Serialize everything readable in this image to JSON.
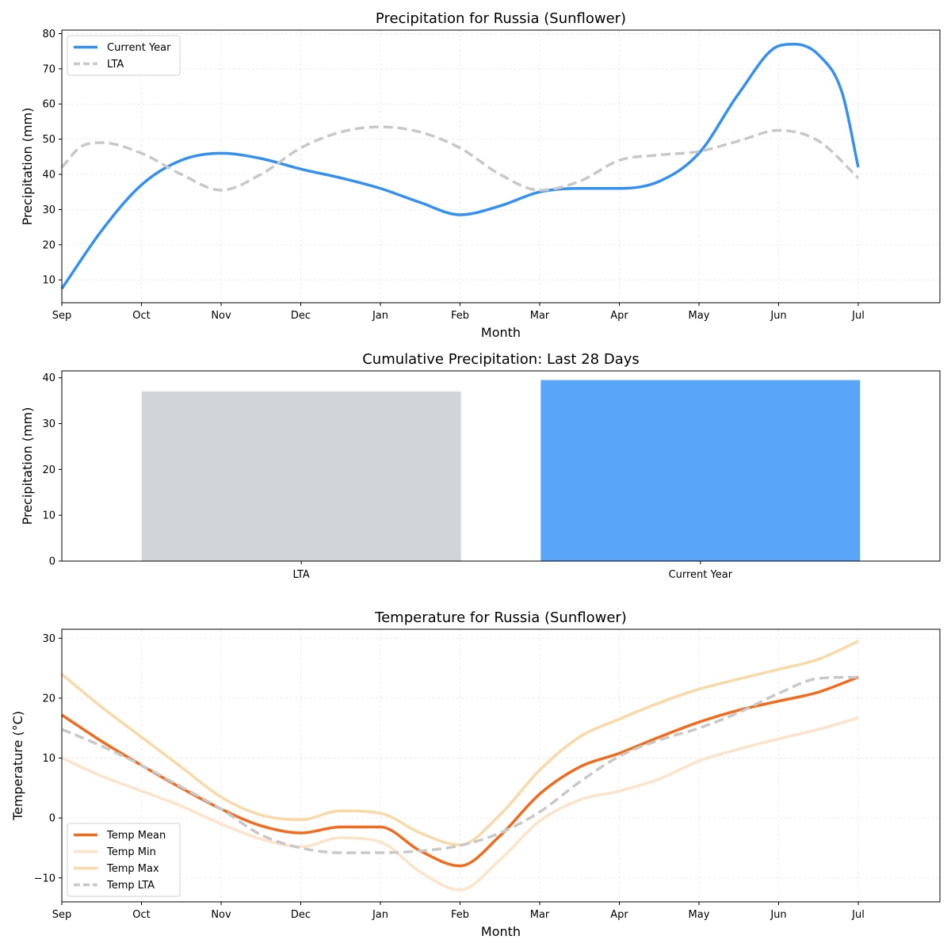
{
  "chart_data": [
    {
      "type": "line",
      "title": "Precipitation for Russia (Sunflower)",
      "xlabel": "Month",
      "ylabel": "Precipitation (mm)",
      "x_ticks": [
        "Sep",
        "Oct",
        "Nov",
        "Dec",
        "Jan",
        "Feb",
        "Mar",
        "Apr",
        "May",
        "Jun",
        "Jul"
      ],
      "x_range": [
        0,
        11.0
      ],
      "ylim": [
        3.5,
        81
      ],
      "y_ticks": [
        10,
        20,
        30,
        40,
        50,
        60,
        70,
        80
      ],
      "grid": true,
      "legend_position": "upper-left",
      "series": [
        {
          "name": "Current Year",
          "color": "#3390f0",
          "dashed": false,
          "x": [
            0,
            0.5,
            1,
            1.5,
            2,
            2.5,
            3,
            3.5,
            4,
            4.5,
            5,
            5.5,
            6,
            6.5,
            7,
            7.5,
            8,
            8.5,
            9,
            9.2,
            9.5,
            9.8,
            10
          ],
          "y": [
            7.5,
            24,
            37,
            44,
            46,
            44.5,
            41.5,
            39,
            36,
            32,
            28.5,
            31,
            35,
            36,
            36,
            38,
            46,
            63,
            76.5,
            77,
            74,
            63,
            42
          ]
        },
        {
          "name": "LTA",
          "color": "#c8c8c8",
          "dashed": true,
          "x": [
            0,
            0.25,
            0.5,
            1,
            1.5,
            2,
            2.5,
            3,
            3.5,
            4,
            4.5,
            5,
            5.5,
            6,
            6.5,
            7,
            7.5,
            8,
            8.5,
            9,
            9.5,
            10
          ],
          "y": [
            42,
            48,
            49,
            46,
            40,
            35.5,
            40,
            47.5,
            52,
            53.5,
            52,
            47.5,
            40,
            35.5,
            38,
            44,
            45.5,
            46.5,
            49.5,
            52.5,
            49.5,
            39
          ]
        }
      ]
    },
    {
      "type": "bar",
      "title": "Cumulative Precipitation: Last 28 Days",
      "xlabel": "",
      "ylabel": "Precipitation (mm)",
      "categories": [
        "LTA",
        "Current Year"
      ],
      "values": [
        37,
        39.5
      ],
      "colors": [
        "#d1d5d8",
        "#58a5fa"
      ],
      "ylim": [
        0,
        41.5
      ],
      "y_ticks": [
        0,
        10,
        20,
        30,
        40
      ],
      "grid": false
    },
    {
      "type": "line",
      "title": "Temperature for Russia (Sunflower)",
      "xlabel": "Month",
      "ylabel": "Temperature (°C)",
      "x_ticks": [
        "Sep",
        "Oct",
        "Nov",
        "Dec",
        "Jan",
        "Feb",
        "Mar",
        "Apr",
        "May",
        "Jun",
        "Jul"
      ],
      "x_range": [
        0,
        11.0
      ],
      "ylim": [
        -14,
        31.5
      ],
      "y_ticks": [
        -10,
        0,
        10,
        20,
        30
      ],
      "y_tick_labels": [
        "−10",
        "0",
        "10",
        "20",
        "30"
      ],
      "grid": true,
      "legend_position": "lower-left",
      "series": [
        {
          "name": "Temp Mean",
          "color": "#f26b1d",
          "dashed": false,
          "x": [
            0,
            0.5,
            1,
            1.5,
            2,
            2.5,
            3,
            3.5,
            4,
            4.5,
            5,
            5.5,
            6,
            6.5,
            7,
            7.5,
            8,
            8.5,
            9,
            9.5,
            10
          ],
          "y": [
            17.2,
            12.8,
            8.8,
            5,
            1.5,
            -1.3,
            -2.5,
            -1.5,
            -1.5,
            -5.5,
            -8,
            -3,
            4,
            8.5,
            10.8,
            13.5,
            16,
            18,
            19.5,
            21,
            23.5
          ]
        },
        {
          "name": "Temp Min",
          "color": "#fde3c8",
          "dashed": false,
          "x": [
            0,
            0.5,
            1,
            1.5,
            2,
            2.5,
            3,
            3.5,
            4,
            4.5,
            5,
            5.5,
            6,
            6.5,
            7,
            7.5,
            8,
            8.5,
            9,
            9.5,
            10
          ],
          "y": [
            10,
            7,
            4.5,
            2,
            -1,
            -3.5,
            -4.8,
            -3.3,
            -4,
            -9,
            -12,
            -7,
            -0.5,
            3,
            4.5,
            6.5,
            9.5,
            11.5,
            13.2,
            14.8,
            16.7
          ]
        },
        {
          "name": "Temp Max",
          "color": "#fad9a6",
          "dashed": false,
          "x": [
            0,
            0.5,
            1,
            1.5,
            2,
            2.5,
            3,
            3.5,
            4,
            4.5,
            5,
            5.5,
            6,
            6.5,
            7,
            7.5,
            8,
            8.5,
            9,
            9.5,
            10
          ],
          "y": [
            24,
            18.5,
            13.5,
            8.5,
            3.5,
            0.5,
            -0.3,
            1.2,
            0.8,
            -2.5,
            -4.5,
            0.5,
            8,
            13.5,
            16.5,
            19.2,
            21.5,
            23.2,
            24.8,
            26.5,
            29.5
          ]
        },
        {
          "name": "Temp LTA",
          "color": "#c8c8c8",
          "dashed": true,
          "x": [
            0,
            0.5,
            1,
            1.5,
            2,
            2.5,
            3,
            3.5,
            4,
            4.5,
            5,
            5.5,
            6,
            6.5,
            7,
            7.5,
            8,
            8.5,
            9,
            9.5,
            10
          ],
          "y": [
            14.8,
            12,
            8.8,
            5.2,
            1.5,
            -2.8,
            -5,
            -5.8,
            -5.8,
            -5.5,
            -4.6,
            -2.5,
            1,
            6,
            10.3,
            13,
            15,
            17.6,
            20.8,
            23.3,
            23.5
          ]
        }
      ]
    }
  ]
}
